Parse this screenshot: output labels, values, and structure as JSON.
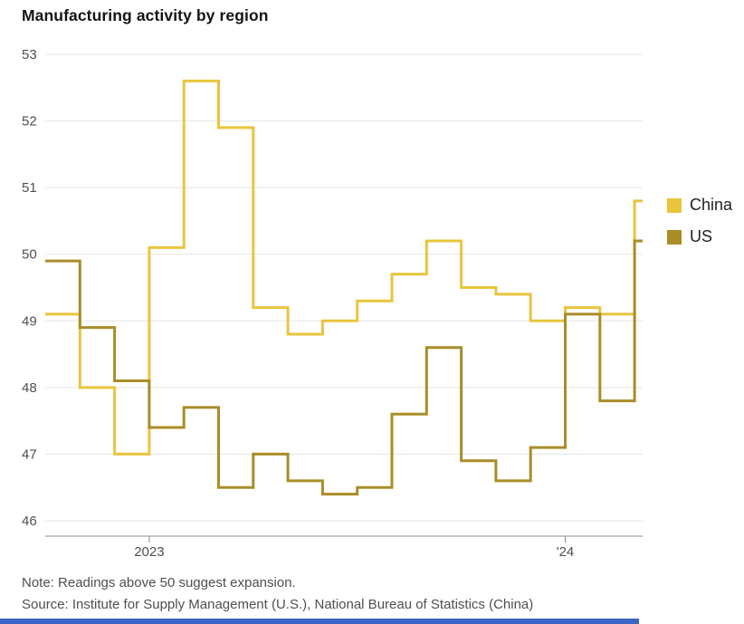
{
  "title": "Manufacturing activity by region",
  "note": "Note: Readings above 50 suggest expansion.",
  "source": "Source: Institute for Supply Management (U.S.), National Bureau of Statistics (China)",
  "colors": {
    "china_line": "#e9c53d",
    "us_line": "#a98d28",
    "gridline": "#e5e5e5",
    "axis": "#8f8f8f",
    "tick_text": "#4f4f4f",
    "bottom_bar": "#3b66c4"
  },
  "chart_data": {
    "type": "line",
    "step": true,
    "title": "Manufacturing activity by region",
    "xlabel": "",
    "ylabel": "",
    "ylim": [
      46,
      53
    ],
    "yticks": [
      53,
      52,
      51,
      50,
      49,
      48,
      47,
      46
    ],
    "grid": "horizontal",
    "legend_position": "right",
    "x": [
      "2022-10",
      "2022-11",
      "2022-12",
      "2023-01",
      "2023-02",
      "2023-03",
      "2023-04",
      "2023-05",
      "2023-06",
      "2023-07",
      "2023-08",
      "2023-09",
      "2023-10",
      "2023-11",
      "2023-12",
      "2024-01",
      "2024-02",
      "2024-03"
    ],
    "xticks": [
      {
        "label": "2023",
        "month_index": 3
      },
      {
        "label": "'24",
        "month_index": 15
      }
    ],
    "series": [
      {
        "name": "China",
        "color": "#e9c53d",
        "values": [
          49.1,
          48.0,
          47.0,
          50.1,
          52.6,
          51.9,
          49.2,
          48.8,
          49.0,
          49.3,
          49.7,
          50.2,
          49.5,
          49.4,
          49.0,
          49.2,
          49.1,
          50.8
        ]
      },
      {
        "name": "US",
        "color": "#a98d28",
        "values": [
          49.9,
          48.9,
          48.1,
          47.4,
          47.7,
          46.5,
          47.0,
          46.6,
          46.4,
          46.5,
          47.6,
          48.6,
          46.9,
          46.6,
          47.1,
          49.1,
          47.8,
          50.2
        ]
      }
    ]
  }
}
